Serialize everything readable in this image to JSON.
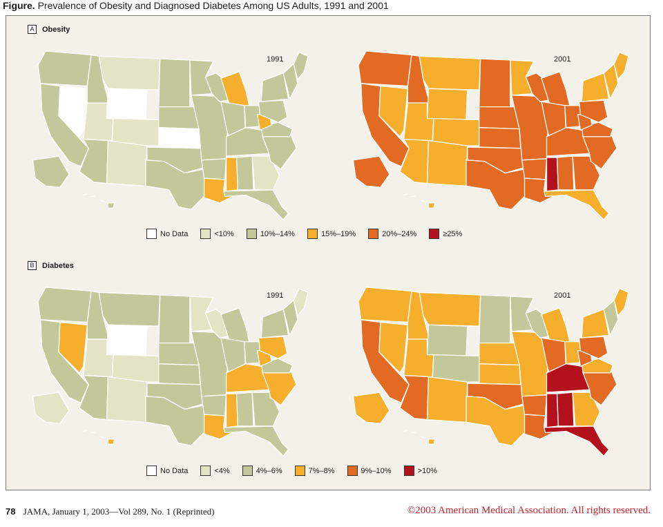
{
  "figure": {
    "title_lead": "Figure.",
    "title_text": "Prevalence of Obesity and Diagnosed Diabetes Among US Adults, 1991 and 2001"
  },
  "colors": {
    "no_data": "#ffffff",
    "c1": "#e3e4c6",
    "c2": "#c2c89a",
    "c3": "#f6ae2d",
    "c4": "#e26a23",
    "c5": "#b3111b",
    "stroke": "#ffffff"
  },
  "panels": [
    {
      "letter": "A",
      "name": "Obesity",
      "maps": [
        {
          "year": "1991",
          "regions": [
            {
              "id": "pacific-nw",
              "level": "c2"
            },
            {
              "id": "california",
              "level": "c2"
            },
            {
              "id": "nevada",
              "level": "no_data"
            },
            {
              "id": "idaho",
              "level": "c2"
            },
            {
              "id": "montana",
              "level": "c1"
            },
            {
              "id": "wyoming",
              "level": "no_data"
            },
            {
              "id": "utah",
              "level": "c1"
            },
            {
              "id": "colorado",
              "level": "c1"
            },
            {
              "id": "southwest",
              "level": "c2"
            },
            {
              "id": "new-mexico",
              "level": "c1"
            },
            {
              "id": "dakotas",
              "level": "c2"
            },
            {
              "id": "nebraska",
              "level": "c2"
            },
            {
              "id": "kansas",
              "level": "no_data"
            },
            {
              "id": "oklahoma",
              "level": "c2"
            },
            {
              "id": "texas",
              "level": "c2"
            },
            {
              "id": "minnesota",
              "level": "c2"
            },
            {
              "id": "iowa-missouri",
              "level": "c2"
            },
            {
              "id": "arkansas",
              "level": "c2"
            },
            {
              "id": "louisiana",
              "level": "c3"
            },
            {
              "id": "wisconsin",
              "level": "c2"
            },
            {
              "id": "michigan",
              "level": "c3"
            },
            {
              "id": "illinois-indiana",
              "level": "c2"
            },
            {
              "id": "ohio",
              "level": "c2"
            },
            {
              "id": "kentucky-tennessee",
              "level": "c2"
            },
            {
              "id": "mississippi",
              "level": "c3"
            },
            {
              "id": "alabama",
              "level": "c2"
            },
            {
              "id": "georgia",
              "level": "c1"
            },
            {
              "id": "carolinas",
              "level": "c2"
            },
            {
              "id": "florida",
              "level": "c2"
            },
            {
              "id": "virginia",
              "level": "c2"
            },
            {
              "id": "west-virginia",
              "level": "c3"
            },
            {
              "id": "mid-atlantic",
              "level": "c2"
            },
            {
              "id": "new-york",
              "level": "c2"
            },
            {
              "id": "new-england",
              "level": "c2"
            },
            {
              "id": "maine",
              "level": "c2"
            },
            {
              "id": "alaska",
              "level": "c2"
            },
            {
              "id": "hawaii",
              "level": "c2"
            }
          ]
        },
        {
          "year": "2001",
          "regions": [
            {
              "id": "pacific-nw",
              "level": "c4"
            },
            {
              "id": "california",
              "level": "c4"
            },
            {
              "id": "nevada",
              "level": "c3"
            },
            {
              "id": "idaho",
              "level": "c4"
            },
            {
              "id": "montana",
              "level": "c3"
            },
            {
              "id": "wyoming",
              "level": "c3"
            },
            {
              "id": "utah",
              "level": "c3"
            },
            {
              "id": "colorado",
              "level": "c3"
            },
            {
              "id": "southwest",
              "level": "c3"
            },
            {
              "id": "new-mexico",
              "level": "c3"
            },
            {
              "id": "dakotas",
              "level": "c4"
            },
            {
              "id": "nebraska",
              "level": "c4"
            },
            {
              "id": "kansas",
              "level": "c4"
            },
            {
              "id": "oklahoma",
              "level": "c4"
            },
            {
              "id": "texas",
              "level": "c4"
            },
            {
              "id": "minnesota",
              "level": "c3"
            },
            {
              "id": "iowa-missouri",
              "level": "c4"
            },
            {
              "id": "arkansas",
              "level": "c4"
            },
            {
              "id": "louisiana",
              "level": "c4"
            },
            {
              "id": "wisconsin",
              "level": "c4"
            },
            {
              "id": "michigan",
              "level": "c4"
            },
            {
              "id": "illinois-indiana",
              "level": "c4"
            },
            {
              "id": "ohio",
              "level": "c4"
            },
            {
              "id": "kentucky-tennessee",
              "level": "c4"
            },
            {
              "id": "mississippi",
              "level": "c5"
            },
            {
              "id": "alabama",
              "level": "c4"
            },
            {
              "id": "georgia",
              "level": "c4"
            },
            {
              "id": "carolinas",
              "level": "c4"
            },
            {
              "id": "florida",
              "level": "c3"
            },
            {
              "id": "virginia",
              "level": "c4"
            },
            {
              "id": "west-virginia",
              "level": "c4"
            },
            {
              "id": "mid-atlantic",
              "level": "c4"
            },
            {
              "id": "new-york",
              "level": "c3"
            },
            {
              "id": "new-england",
              "level": "c3"
            },
            {
              "id": "maine",
              "level": "c3"
            },
            {
              "id": "alaska",
              "level": "c4"
            },
            {
              "id": "hawaii",
              "level": "c3"
            }
          ]
        }
      ],
      "legend": [
        {
          "label": "No Data",
          "level": "no_data"
        },
        {
          "label": "<10%",
          "level": "c1"
        },
        {
          "label": "10%–14%",
          "level": "c2"
        },
        {
          "label": "15%–19%",
          "level": "c3"
        },
        {
          "label": "20%–24%",
          "level": "c4"
        },
        {
          "label": "≥25%",
          "level": "c5"
        }
      ]
    },
    {
      "letter": "B",
      "name": "Diabetes",
      "maps": [
        {
          "year": "1991",
          "regions": [
            {
              "id": "pacific-nw",
              "level": "c2"
            },
            {
              "id": "california",
              "level": "c2"
            },
            {
              "id": "nevada",
              "level": "c3"
            },
            {
              "id": "idaho",
              "level": "c2"
            },
            {
              "id": "montana",
              "level": "c2"
            },
            {
              "id": "wyoming",
              "level": "no_data"
            },
            {
              "id": "utah",
              "level": "c1"
            },
            {
              "id": "colorado",
              "level": "c1"
            },
            {
              "id": "southwest",
              "level": "c2"
            },
            {
              "id": "new-mexico",
              "level": "c1"
            },
            {
              "id": "dakotas",
              "level": "c2"
            },
            {
              "id": "nebraska",
              "level": "c2"
            },
            {
              "id": "kansas",
              "level": "c2"
            },
            {
              "id": "oklahoma",
              "level": "c2"
            },
            {
              "id": "texas",
              "level": "c2"
            },
            {
              "id": "minnesota",
              "level": "c1"
            },
            {
              "id": "iowa-missouri",
              "level": "c2"
            },
            {
              "id": "arkansas",
              "level": "c2"
            },
            {
              "id": "louisiana",
              "level": "c3"
            },
            {
              "id": "wisconsin",
              "level": "c1"
            },
            {
              "id": "michigan",
              "level": "c2"
            },
            {
              "id": "illinois-indiana",
              "level": "c2"
            },
            {
              "id": "ohio",
              "level": "c2"
            },
            {
              "id": "kentucky-tennessee",
              "level": "c3"
            },
            {
              "id": "mississippi",
              "level": "c3"
            },
            {
              "id": "alabama",
              "level": "c2"
            },
            {
              "id": "georgia",
              "level": "c2"
            },
            {
              "id": "carolinas",
              "level": "c3"
            },
            {
              "id": "florida",
              "level": "c2"
            },
            {
              "id": "virginia",
              "level": "c2"
            },
            {
              "id": "west-virginia",
              "level": "c3"
            },
            {
              "id": "mid-atlantic",
              "level": "c3"
            },
            {
              "id": "new-york",
              "level": "c2"
            },
            {
              "id": "new-england",
              "level": "c2"
            },
            {
              "id": "maine",
              "level": "c1"
            },
            {
              "id": "alaska",
              "level": "c1"
            },
            {
              "id": "hawaii",
              "level": "c3"
            }
          ]
        },
        {
          "year": "2001",
          "regions": [
            {
              "id": "pacific-nw",
              "level": "c3"
            },
            {
              "id": "california",
              "level": "c4"
            },
            {
              "id": "nevada",
              "level": "c3"
            },
            {
              "id": "idaho",
              "level": "c3"
            },
            {
              "id": "montana",
              "level": "c3"
            },
            {
              "id": "wyoming",
              "level": "c2"
            },
            {
              "id": "utah",
              "level": "c3"
            },
            {
              "id": "colorado",
              "level": "c2"
            },
            {
              "id": "southwest",
              "level": "c4"
            },
            {
              "id": "new-mexico",
              "level": "c3"
            },
            {
              "id": "dakotas",
              "level": "c2"
            },
            {
              "id": "nebraska",
              "level": "c3"
            },
            {
              "id": "kansas",
              "level": "c3"
            },
            {
              "id": "oklahoma",
              "level": "c4"
            },
            {
              "id": "texas",
              "level": "c3"
            },
            {
              "id": "minnesota",
              "level": "c2"
            },
            {
              "id": "iowa-missouri",
              "level": "c3"
            },
            {
              "id": "arkansas",
              "level": "c4"
            },
            {
              "id": "louisiana",
              "level": "c4"
            },
            {
              "id": "wisconsin",
              "level": "c2"
            },
            {
              "id": "michigan",
              "level": "c3"
            },
            {
              "id": "illinois-indiana",
              "level": "c4"
            },
            {
              "id": "ohio",
              "level": "c3"
            },
            {
              "id": "kentucky-tennessee",
              "level": "c5"
            },
            {
              "id": "mississippi",
              "level": "c5"
            },
            {
              "id": "alabama",
              "level": "c5"
            },
            {
              "id": "georgia",
              "level": "c3"
            },
            {
              "id": "carolinas",
              "level": "c4"
            },
            {
              "id": "florida",
              "level": "c5"
            },
            {
              "id": "virginia",
              "level": "c3"
            },
            {
              "id": "west-virginia",
              "level": "c4"
            },
            {
              "id": "mid-atlantic",
              "level": "c4"
            },
            {
              "id": "new-york",
              "level": "c3"
            },
            {
              "id": "new-england",
              "level": "c2"
            },
            {
              "id": "maine",
              "level": "c3"
            },
            {
              "id": "alaska",
              "level": "c3"
            },
            {
              "id": "hawaii",
              "level": "c3"
            }
          ]
        }
      ],
      "legend": [
        {
          "label": "No Data",
          "level": "no_data"
        },
        {
          "label": "<4%",
          "level": "c1"
        },
        {
          "label": "4%–6%",
          "level": "c2"
        },
        {
          "label": "7%–8%",
          "level": "c3"
        },
        {
          "label": "9%–10%",
          "level": "c4"
        },
        {
          "label": ">10%",
          "level": "c5"
        }
      ]
    }
  ],
  "footer": {
    "page_number": "78",
    "citation": "JAMA, January 1, 2003—Vol 289, No. 1 (Reprinted)",
    "copyright": "©2003 American Medical Association. All rights reserved."
  }
}
